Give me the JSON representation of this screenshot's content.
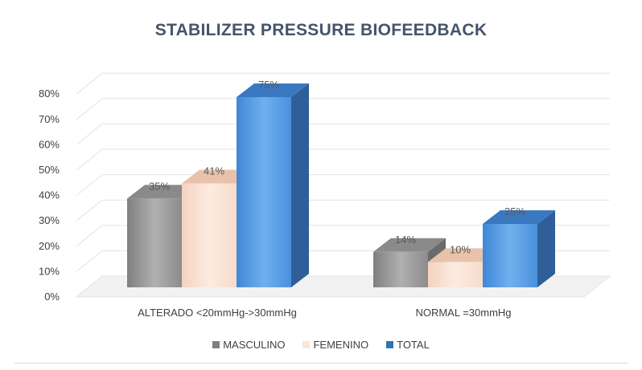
{
  "chart_data": {
    "type": "bar",
    "title": "STABILIZER PRESSURE BIOFEEDBACK",
    "categories": [
      "ALTERADO <20mmHg->30mmHg",
      "NORMAL =30mmHg"
    ],
    "series": [
      {
        "name": "MASCULINO",
        "values": [
          35,
          14
        ],
        "labels": [
          "35%",
          "14%"
        ],
        "color": "#a6a6a6"
      },
      {
        "name": "FEMENINO",
        "values": [
          41,
          10
        ],
        "labels": [
          "41%",
          "10%"
        ],
        "color": "#fce4d6"
      },
      {
        "name": "TOTAL",
        "values": [
          75,
          25
        ],
        "labels": [
          "75%",
          "25%"
        ],
        "color": "#5b9bd5"
      }
    ],
    "yticks": [
      "0%",
      "10%",
      "20%",
      "30%",
      "40%",
      "50%",
      "60%",
      "70%",
      "80%"
    ],
    "ylim": [
      0,
      80
    ],
    "grid": true,
    "legend_position": "bottom",
    "style": "3d-column"
  }
}
